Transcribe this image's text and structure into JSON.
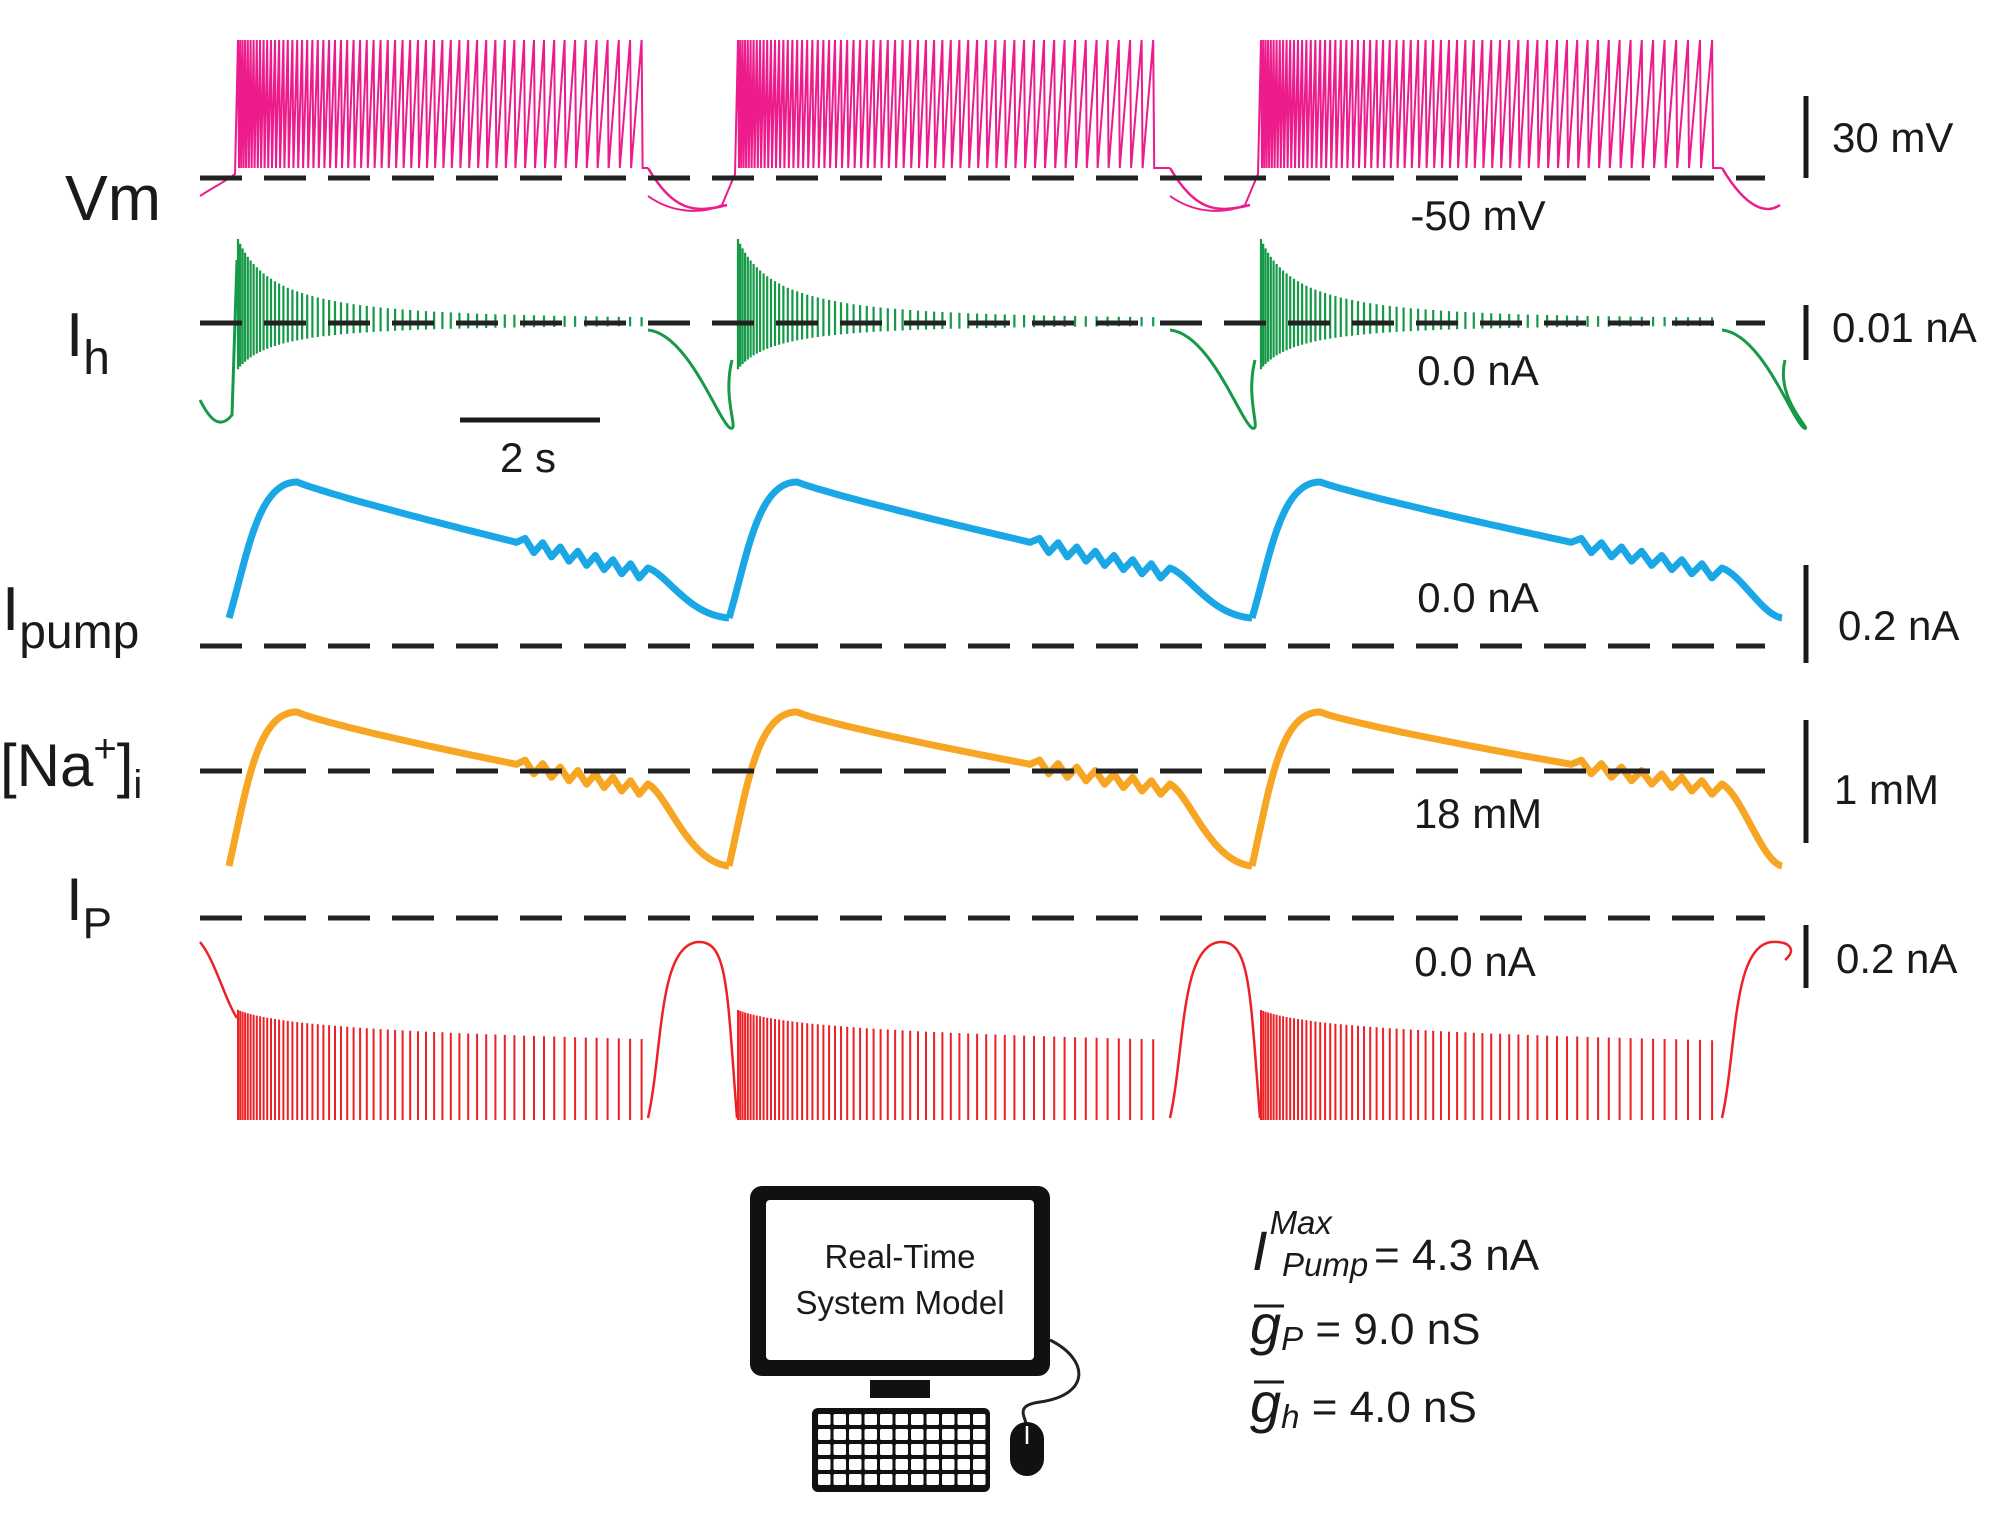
{
  "colors": {
    "vm": "#ec1c8c",
    "ih": "#169a48",
    "ipump": "#1aa7e6",
    "na": "#f6a623",
    "ip": "#ec2227",
    "dash": "#222222",
    "ink": "#1a1a1a"
  },
  "traces": [
    {
      "id": "vm",
      "label": "Vm",
      "ref_label": "-50 mV",
      "scale_label": "30 mV"
    },
    {
      "id": "ih",
      "label_main": "I",
      "label_sub": "h",
      "ref_label": "0.0 nA",
      "scale_label": "0.01 nA"
    },
    {
      "id": "ipump",
      "label_main": "I",
      "label_sub": "pump",
      "ref_label": "0.0 nA",
      "scale_label": "0.2 nA"
    },
    {
      "id": "na",
      "label_main": "[Na",
      "label_sup": "+",
      "label_close": "]",
      "label_sub": "i",
      "ref_label": "18 mM",
      "scale_label": "1 mM"
    },
    {
      "id": "ip",
      "label_main": "I",
      "label_sub": "P",
      "ref_label": "0.0 nA",
      "scale_label": "0.2 nA"
    }
  ],
  "time_scale": {
    "label": "2 s"
  },
  "computer": {
    "screen_line1": "Real-Time",
    "screen_line2": "System Model"
  },
  "params": {
    "ipump_max": {
      "sym": "I",
      "sup": "Max",
      "sub": "Pump",
      "value": " = 4.3 nA"
    },
    "gp": {
      "sym": "g",
      "sub": "P",
      "value": " = 9.0 nS"
    },
    "gh": {
      "sym": "g",
      "sub": "h",
      "value": " = 4.0 nS"
    }
  }
}
